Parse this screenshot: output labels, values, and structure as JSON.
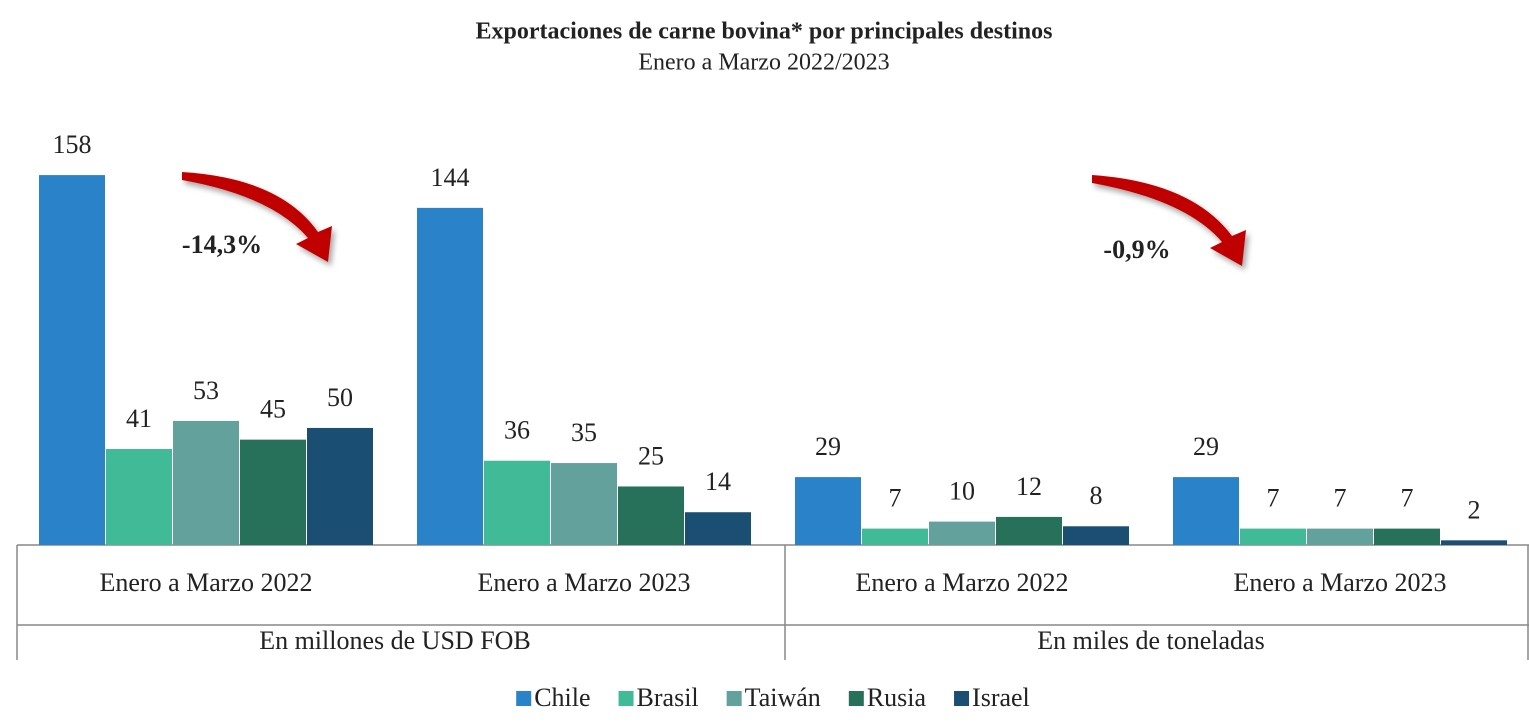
{
  "chart_data": {
    "type": "bar",
    "title": "Exportaciones de carne bovina* por principales destinos",
    "subtitle": "Enero a Marzo 2022/2023",
    "categories": [
      "Enero a Marzo 2022",
      "Enero a Marzo 2023",
      "Enero a Marzo 2022",
      "Enero a Marzo 2023"
    ],
    "category_groups": [
      "En millones de USD FOB",
      "En miles de toneladas"
    ],
    "series": [
      {
        "name": "Chile",
        "color": "#2a82c9",
        "values": [
          158,
          144,
          29,
          29
        ]
      },
      {
        "name": "Brasil",
        "color": "#41bb97",
        "values": [
          41,
          36,
          7,
          7
        ]
      },
      {
        "name": "Taiwán",
        "color": "#62a19c",
        "values": [
          53,
          35,
          10,
          7
        ]
      },
      {
        "name": "Rusia",
        "color": "#27705a",
        "values": [
          45,
          25,
          12,
          7
        ]
      },
      {
        "name": "Israel",
        "color": "#1a4e72",
        "values": [
          50,
          14,
          8,
          2
        ]
      }
    ],
    "annotations": [
      "-14,3%",
      "-0,9%"
    ],
    "ylim": [
      0,
      170
    ],
    "legend": "bottom"
  }
}
